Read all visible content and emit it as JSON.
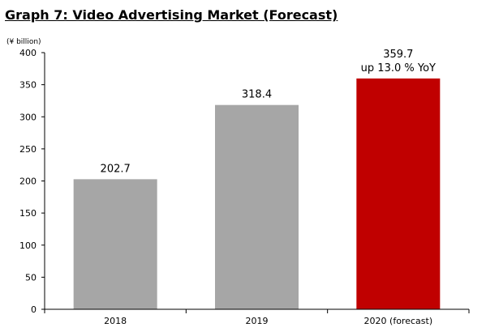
{
  "chart_data": {
    "type": "bar",
    "title": "Graph 7: Video Advertising Market (Forecast)",
    "ylabel": "(¥ billion)",
    "xlabel": "",
    "ylim": [
      0,
      400
    ],
    "yticks": [
      0,
      50,
      100,
      150,
      200,
      250,
      300,
      350,
      400
    ],
    "categories": [
      "2018",
      "2019",
      "2020 (forecast)"
    ],
    "values": [
      202.7,
      318.4,
      359.7
    ],
    "data_labels": [
      [
        "202.7"
      ],
      [
        "318.4"
      ],
      [
        "359.7",
        "up 13.0 % YoY"
      ]
    ],
    "bar_colors": [
      "#a6a6a6",
      "#a6a6a6",
      "#c00000"
    ],
    "grid": false,
    "legend": "none"
  }
}
